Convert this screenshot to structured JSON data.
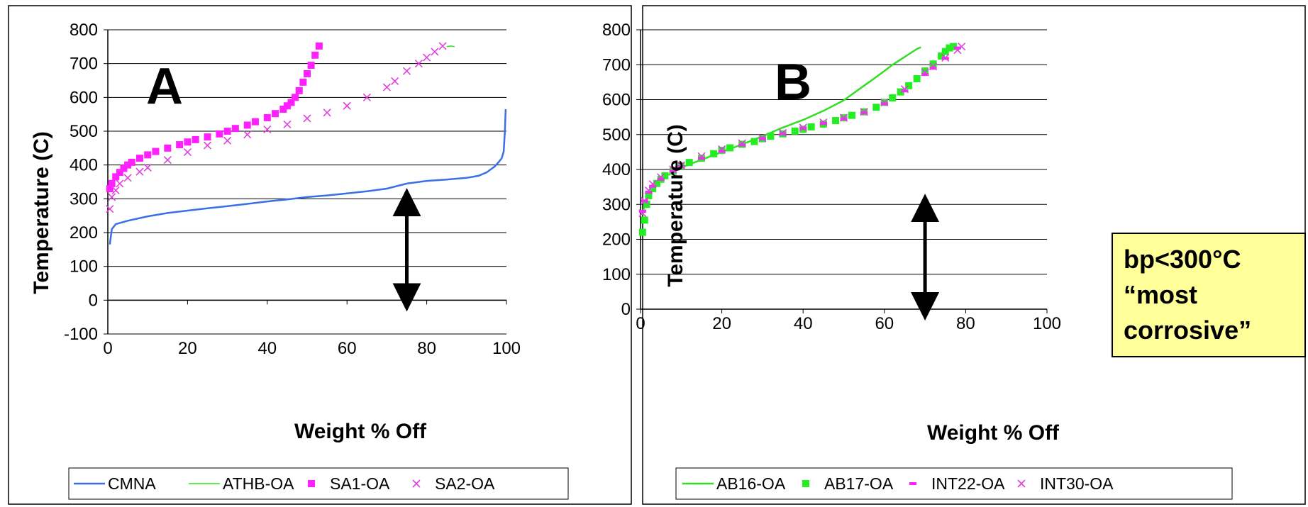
{
  "chart_data": [
    {
      "type": "line",
      "panel_label": "A",
      "xlabel": "Weight % Off",
      "ylabel": "Temperature (C)",
      "xlim": [
        0,
        100
      ],
      "ylim": [
        -100,
        800
      ],
      "xticks": [
        0,
        20,
        40,
        60,
        80,
        100
      ],
      "yticks": [
        -100,
        0,
        100,
        200,
        300,
        400,
        500,
        600,
        700,
        800
      ],
      "grid": "horizontal",
      "legend_position": "bottom",
      "annotations": [
        {
          "type": "double-arrow",
          "x": 75,
          "y_from": 0,
          "y_to": 290
        }
      ],
      "series": [
        {
          "name": "CMNA",
          "style": "line",
          "color": "#3a6fe6",
          "x": [
            0.5,
            1,
            2,
            5,
            10,
            15,
            20,
            25,
            30,
            35,
            40,
            45,
            50,
            55,
            60,
            65,
            70,
            75,
            80,
            85,
            90,
            93,
            95,
            97,
            98,
            98.8,
            99.3,
            99.6,
            99.8
          ],
          "y": [
            165,
            210,
            225,
            235,
            248,
            258,
            265,
            272,
            278,
            285,
            292,
            298,
            305,
            310,
            316,
            322,
            330,
            345,
            353,
            357,
            362,
            368,
            378,
            395,
            408,
            420,
            440,
            500,
            565
          ]
        },
        {
          "name": "ATHB-OA",
          "style": "line",
          "color": "#33dd22",
          "x": [
            85,
            86,
            87
          ],
          "y": [
            750,
            752,
            750
          ]
        },
        {
          "name": "SA1-OA",
          "style": "square",
          "color": "#ff1fff",
          "x": [
            0.5,
            1,
            2,
            3,
            4,
            5,
            6,
            8,
            10,
            12,
            15,
            18,
            20,
            22,
            25,
            28,
            30,
            32,
            35,
            37,
            40,
            42,
            44,
            45,
            46,
            47,
            48,
            49,
            50,
            51,
            52,
            53
          ],
          "y": [
            330,
            345,
            365,
            378,
            390,
            400,
            408,
            420,
            430,
            440,
            450,
            460,
            468,
            475,
            483,
            492,
            500,
            508,
            518,
            528,
            540,
            552,
            565,
            575,
            585,
            600,
            620,
            645,
            670,
            695,
            725,
            752
          ]
        },
        {
          "name": "SA2-OA",
          "style": "x",
          "color": "#e040e0",
          "x": [
            0.5,
            1,
            2,
            3,
            5,
            8,
            10,
            15,
            20,
            25,
            30,
            35,
            40,
            45,
            50,
            55,
            60,
            65,
            70,
            72,
            75,
            78,
            80,
            82,
            84
          ],
          "y": [
            270,
            305,
            325,
            345,
            362,
            380,
            392,
            415,
            438,
            458,
            472,
            490,
            505,
            520,
            538,
            555,
            575,
            600,
            630,
            648,
            678,
            700,
            718,
            735,
            752
          ]
        }
      ]
    },
    {
      "type": "line",
      "panel_label": "B",
      "xlabel": "Weight % Off",
      "ylabel": "Temperature (C)",
      "xlim": [
        0,
        100
      ],
      "ylim": [
        0,
        800
      ],
      "xticks": [
        0,
        20,
        40,
        60,
        80,
        100
      ],
      "yticks": [
        0,
        100,
        200,
        300,
        400,
        500,
        600,
        700,
        800
      ],
      "grid": "horizontal",
      "legend_position": "bottom",
      "annotations": [
        {
          "type": "double-arrow",
          "x": 70,
          "y_from": 0,
          "y_to": 290
        },
        {
          "type": "callout",
          "lines": [
            "bp<300°C",
            "“most",
            "corrosive”"
          ]
        }
      ],
      "series": [
        {
          "name": "AB16-OA",
          "style": "line",
          "color": "#33dd22",
          "x": [
            0.5,
            1,
            2,
            3,
            5,
            8,
            10,
            15,
            20,
            25,
            30,
            35,
            40,
            45,
            50,
            52,
            55,
            58,
            60,
            62,
            64,
            66,
            68,
            69
          ],
          "y": [
            270,
            300,
            330,
            350,
            372,
            392,
            405,
            428,
            450,
            472,
            495,
            520,
            542,
            568,
            598,
            615,
            640,
            665,
            682,
            700,
            715,
            730,
            745,
            750
          ]
        },
        {
          "name": "AB17-OA",
          "style": "square",
          "color": "#22ee22",
          "x": [
            0.5,
            1,
            1.5,
            2,
            3,
            4,
            5,
            6,
            8,
            10,
            12,
            15,
            18,
            20,
            22,
            25,
            28,
            30,
            32,
            35,
            38,
            40,
            42,
            45,
            48,
            50,
            52,
            55,
            58,
            60,
            62,
            64,
            66,
            68,
            70,
            72,
            74,
            75,
            76,
            77
          ],
          "y": [
            220,
            255,
            300,
            325,
            345,
            360,
            372,
            382,
            395,
            410,
            420,
            432,
            445,
            455,
            462,
            472,
            480,
            488,
            495,
            502,
            510,
            515,
            522,
            530,
            540,
            548,
            555,
            565,
            578,
            592,
            605,
            622,
            640,
            660,
            682,
            702,
            725,
            738,
            748,
            752
          ]
        },
        {
          "name": "INT22-OA",
          "style": "dash",
          "color": "#ff1fff",
          "x": [
            0.5,
            1,
            2,
            3,
            5,
            8,
            10,
            15,
            20,
            25,
            30,
            35,
            40,
            45,
            50,
            55,
            60,
            65,
            70,
            72,
            75,
            78
          ],
          "y": [
            280,
            310,
            335,
            352,
            372,
            395,
            408,
            432,
            452,
            470,
            488,
            502,
            518,
            532,
            545,
            562,
            588,
            625,
            672,
            690,
            718,
            748
          ]
        },
        {
          "name": "INT30-OA",
          "style": "x",
          "color": "#e040e0",
          "x": [
            0.5,
            1,
            2,
            3,
            5,
            8,
            10,
            15,
            20,
            25,
            30,
            35,
            40,
            45,
            50,
            55,
            60,
            65,
            70,
            72,
            75,
            78,
            79
          ],
          "y": [
            275,
            310,
            340,
            358,
            378,
            400,
            412,
            438,
            458,
            475,
            490,
            505,
            520,
            535,
            548,
            565,
            592,
            630,
            678,
            695,
            720,
            742,
            752
          ]
        }
      ]
    }
  ]
}
